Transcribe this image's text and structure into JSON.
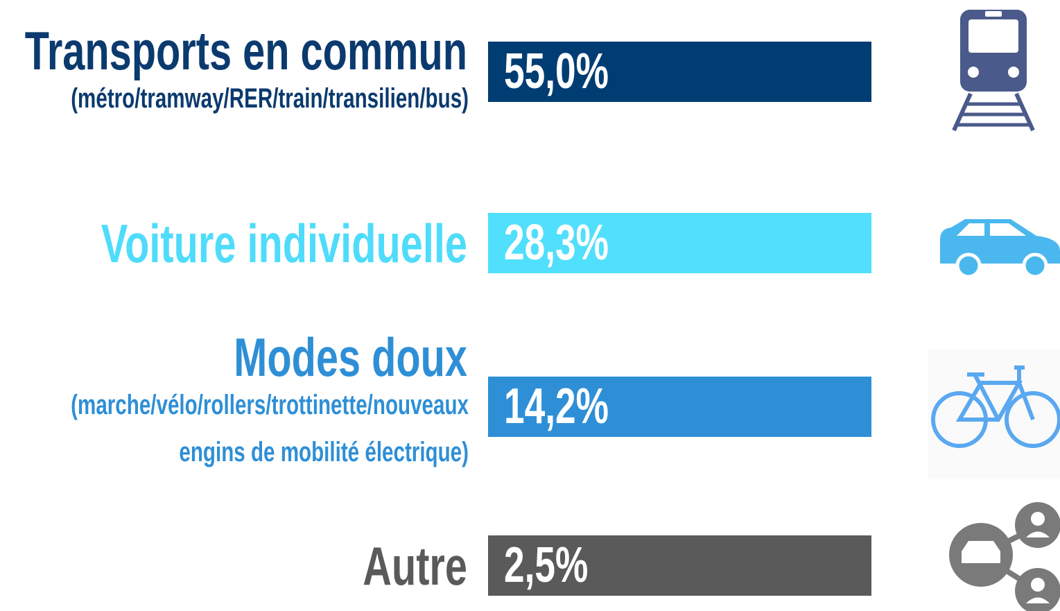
{
  "rows": [
    {
      "title": "Transports en commun",
      "sublines": [
        "(métro/tramway/RER/train/transilien/bus)"
      ],
      "value": "55,0%",
      "color": "#0b3a6e",
      "bar_color": "#003d73"
    },
    {
      "title": "Voiture individuelle",
      "sublines": [],
      "value": "28,3%",
      "color": "#4fdcfb",
      "bar_color": "#50dffc"
    },
    {
      "title": "Modes doux",
      "sublines": [
        "(marche/vélo/rollers/trottinette/nouveaux",
        "engins de mobilité électrique)"
      ],
      "value": "14,2%",
      "color": "#2e8fd6",
      "bar_color": "#2e8fd6"
    },
    {
      "title": "Autre",
      "sublines": [],
      "value": "2,5%",
      "color": "#5a5a5a",
      "bar_color": "#5a5a5a"
    }
  ]
}
